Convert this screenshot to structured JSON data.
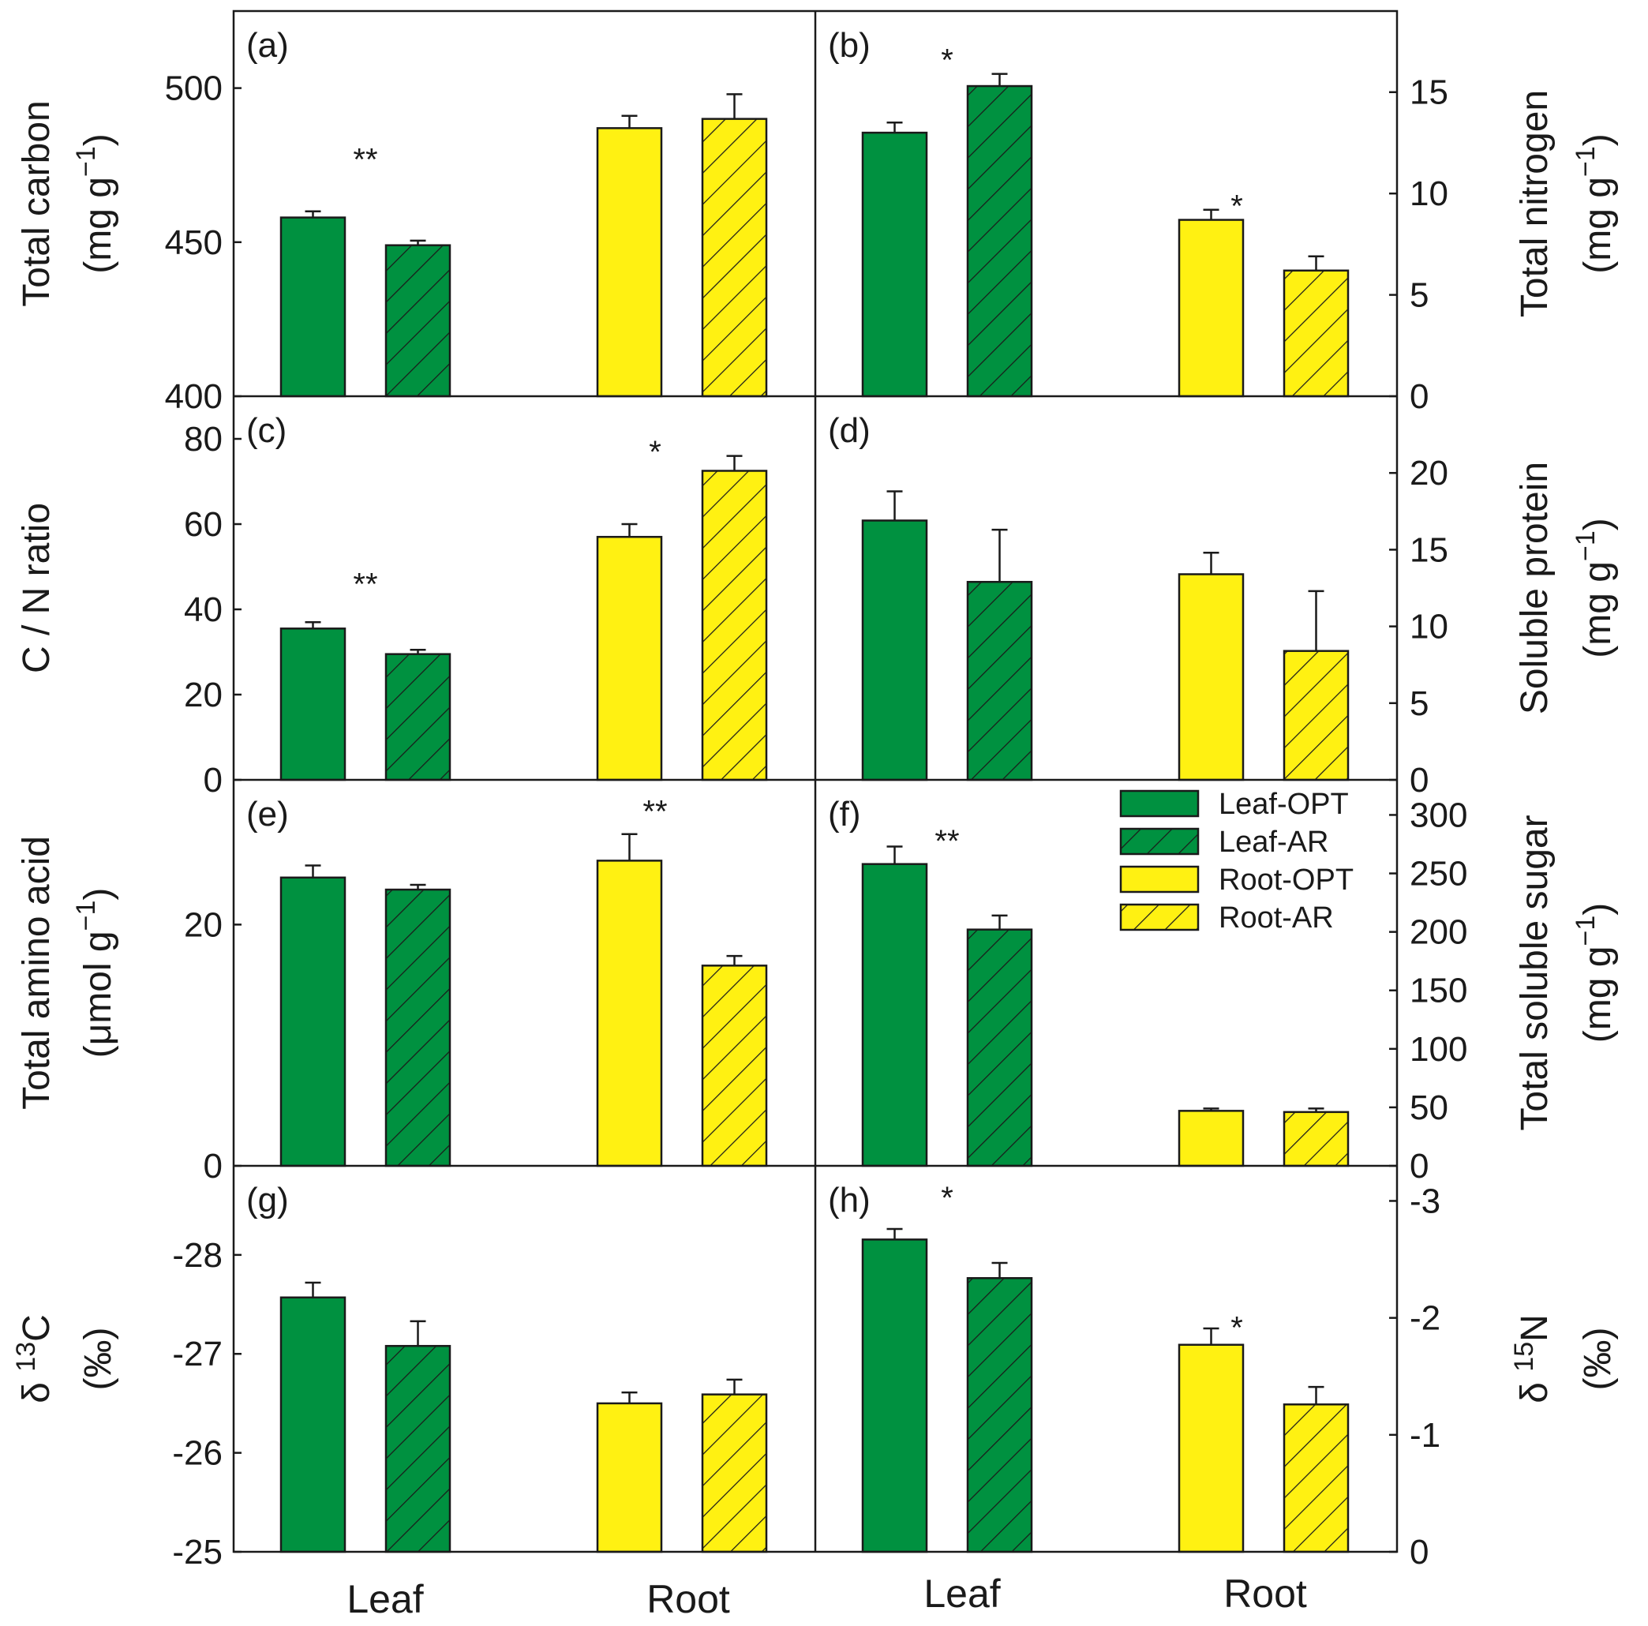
{
  "legend": [
    {
      "key": "leaf-opt",
      "label": "Leaf-OPT"
    },
    {
      "key": "leaf-ar",
      "label": "Leaf-AR"
    },
    {
      "key": "root-opt",
      "label": "Root-OPT"
    },
    {
      "key": "root-ar",
      "label": "Root-AR"
    }
  ],
  "colors": {
    "leaf": "#009140",
    "root": "#fff112",
    "outline": "#1a1a1a",
    "hatch": "#1a1a1a"
  },
  "x_categories": {
    "left": [
      "Leaf",
      "Root"
    ],
    "right": [
      "Leaf",
      "Root"
    ]
  },
  "chart_data": [
    {
      "type": "bar",
      "panel": "(a)",
      "ylabel": [
        "Total carbon",
        "(mg g",
        "−1",
        ")"
      ],
      "ylim": [
        400,
        525
      ],
      "yticks": [
        400,
        450,
        500
      ],
      "y_axis_side": "left",
      "categories": [
        "Leaf",
        "Root"
      ],
      "series": [
        {
          "name": "Leaf-OPT",
          "values": [
            458,
            null
          ],
          "errors": [
            2,
            null
          ]
        },
        {
          "name": "Leaf-AR",
          "values": [
            449,
            null
          ],
          "errors": [
            1.5,
            null
          ]
        },
        {
          "name": "Root-OPT",
          "values": [
            null,
            487
          ],
          "errors": [
            null,
            4
          ]
        },
        {
          "name": "Root-AR",
          "values": [
            null,
            490
          ],
          "errors": [
            null,
            8
          ]
        }
      ],
      "annotations": [
        {
          "text": "**",
          "over": "Leaf",
          "value": 477
        }
      ]
    },
    {
      "type": "bar",
      "panel": "(b)",
      "ylabel": [
        "Total nitrogen",
        "(mg g",
        "−1",
        ")"
      ],
      "ylim": [
        0,
        19
      ],
      "yticks": [
        0,
        5,
        10,
        15
      ],
      "y_axis_side": "right",
      "categories": [
        "Leaf",
        "Root"
      ],
      "series": [
        {
          "name": "Leaf-OPT",
          "values": [
            13,
            null
          ],
          "errors": [
            0.5,
            null
          ]
        },
        {
          "name": "Leaf-AR",
          "values": [
            15.3,
            null
          ],
          "errors": [
            0.6,
            null
          ]
        },
        {
          "name": "Root-OPT",
          "values": [
            null,
            8.7
          ],
          "errors": [
            null,
            0.5
          ]
        },
        {
          "name": "Root-AR",
          "values": [
            null,
            6.2
          ],
          "errors": [
            null,
            0.7
          ]
        }
      ],
      "annotations": [
        {
          "text": "*",
          "over": "Leaf",
          "value": 16.6
        },
        {
          "text": "*",
          "over": "Root",
          "value": 9.4
        }
      ]
    },
    {
      "type": "bar",
      "panel": "(c)",
      "ylabel": [
        "C / N ratio"
      ],
      "ylim": [
        0,
        90
      ],
      "yticks": [
        0,
        20,
        40,
        60,
        80
      ],
      "y_axis_side": "left",
      "categories": [
        "Leaf",
        "Root"
      ],
      "series": [
        {
          "name": "Leaf-OPT",
          "values": [
            35.5,
            null
          ],
          "errors": [
            1.5,
            null
          ]
        },
        {
          "name": "Leaf-AR",
          "values": [
            29.5,
            null
          ],
          "errors": [
            1,
            null
          ]
        },
        {
          "name": "Root-OPT",
          "values": [
            null,
            57
          ],
          "errors": [
            null,
            3
          ]
        },
        {
          "name": "Root-AR",
          "values": [
            null,
            72.5
          ],
          "errors": [
            null,
            3.5
          ]
        }
      ],
      "annotations": [
        {
          "text": "**",
          "over": "Leaf",
          "value": 46
        },
        {
          "text": "*",
          "over": "Root",
          "value": 77
        }
      ]
    },
    {
      "type": "bar",
      "panel": "(d)",
      "ylabel": [
        "Soluble protein",
        "(mg g",
        "−1",
        ")"
      ],
      "ylim": [
        0,
        25
      ],
      "yticks": [
        0,
        5,
        10,
        15,
        20
      ],
      "y_axis_side": "right",
      "categories": [
        "Leaf",
        "Root"
      ],
      "series": [
        {
          "name": "Leaf-OPT",
          "values": [
            16.9,
            null
          ],
          "errors": [
            1.9,
            null
          ]
        },
        {
          "name": "Leaf-AR",
          "values": [
            12.9,
            null
          ],
          "errors": [
            3.4,
            null
          ]
        },
        {
          "name": "Root-OPT",
          "values": [
            null,
            13.4
          ],
          "errors": [
            null,
            1.4
          ]
        },
        {
          "name": "Root-AR",
          "values": [
            null,
            8.4
          ],
          "errors": [
            null,
            3.9
          ]
        }
      ],
      "annotations": []
    },
    {
      "type": "bar",
      "panel": "(e)",
      "ylabel": [
        "Total amino acid",
        "(μmol g",
        "−1",
        ")"
      ],
      "ylim": [
        0,
        32
      ],
      "yticks": [
        0,
        20
      ],
      "y_axis_side": "left",
      "categories": [
        "Leaf",
        "Root"
      ],
      "series": [
        {
          "name": "Leaf-OPT",
          "values": [
            23.9,
            null
          ],
          "errors": [
            1,
            null
          ]
        },
        {
          "name": "Leaf-AR",
          "values": [
            22.9,
            null
          ],
          "errors": [
            0.4,
            null
          ]
        },
        {
          "name": "Root-OPT",
          "values": [
            null,
            25.3
          ],
          "errors": [
            null,
            2.2
          ]
        },
        {
          "name": "Root-AR",
          "values": [
            null,
            16.6
          ],
          "errors": [
            null,
            0.8
          ]
        }
      ],
      "annotations": [
        {
          "text": "**",
          "over": "Root",
          "value": 29.4
        }
      ]
    },
    {
      "type": "bar",
      "panel": "(f)",
      "ylabel": [
        "Total soluble sugar",
        "(mg g",
        "−1",
        ")"
      ],
      "ylim": [
        0,
        330
      ],
      "yticks": [
        0,
        50,
        100,
        150,
        200,
        250,
        300
      ],
      "y_axis_side": "right",
      "categories": [
        "Leaf",
        "Root"
      ],
      "series": [
        {
          "name": "Leaf-OPT",
          "values": [
            258,
            null
          ],
          "errors": [
            15,
            null
          ]
        },
        {
          "name": "Leaf-AR",
          "values": [
            202,
            null
          ],
          "errors": [
            12,
            null
          ]
        },
        {
          "name": "Root-OPT",
          "values": [
            null,
            47
          ],
          "errors": [
            null,
            2
          ]
        },
        {
          "name": "Root-AR",
          "values": [
            null,
            46
          ],
          "errors": [
            null,
            3
          ]
        }
      ],
      "annotations": [
        {
          "text": "**",
          "over": "Leaf",
          "value": 278
        }
      ]
    },
    {
      "type": "bar",
      "panel": "(g)",
      "ylabel": [
        "δ",
        "13",
        "C",
        "(‰)"
      ],
      "ylim": [
        -25,
        -28.9
      ],
      "yticks": [
        -25,
        -26,
        -27,
        -28
      ],
      "y_axis_side": "left",
      "categories": [
        "Leaf",
        "Root"
      ],
      "series": [
        {
          "name": "Leaf-OPT",
          "values": [
            -27.57,
            null
          ],
          "errors": [
            0.15,
            null
          ]
        },
        {
          "name": "Leaf-AR",
          "values": [
            -27.08,
            null
          ],
          "errors": [
            0.25,
            null
          ]
        },
        {
          "name": "Root-OPT",
          "values": [
            null,
            -26.5
          ],
          "errors": [
            null,
            0.11
          ]
        },
        {
          "name": "Root-AR",
          "values": [
            null,
            -26.59
          ],
          "errors": [
            null,
            0.15
          ]
        }
      ],
      "annotations": []
    },
    {
      "type": "bar",
      "panel": "(h)",
      "ylabel": [
        "δ",
        "15",
        "N",
        "(‰)"
      ],
      "ylim": [
        0,
        -3.3
      ],
      "yticks": [
        0,
        -1,
        -2,
        -3
      ],
      "y_axis_side": "right",
      "categories": [
        "Leaf",
        "Root"
      ],
      "series": [
        {
          "name": "Leaf-OPT",
          "values": [
            -2.67,
            null
          ],
          "errors": [
            0.09,
            null
          ]
        },
        {
          "name": "Leaf-AR",
          "values": [
            -2.34,
            null
          ],
          "errors": [
            0.13,
            null
          ]
        },
        {
          "name": "Root-OPT",
          "values": [
            null,
            -1.77
          ],
          "errors": [
            null,
            0.14
          ]
        },
        {
          "name": "Root-AR",
          "values": [
            null,
            -1.26
          ],
          "errors": [
            null,
            0.15
          ]
        }
      ],
      "annotations": [
        {
          "text": "*",
          "over": "Leaf",
          "value": -3.03
        },
        {
          "text": "*",
          "over": "Root",
          "value": -1.92
        }
      ]
    }
  ]
}
